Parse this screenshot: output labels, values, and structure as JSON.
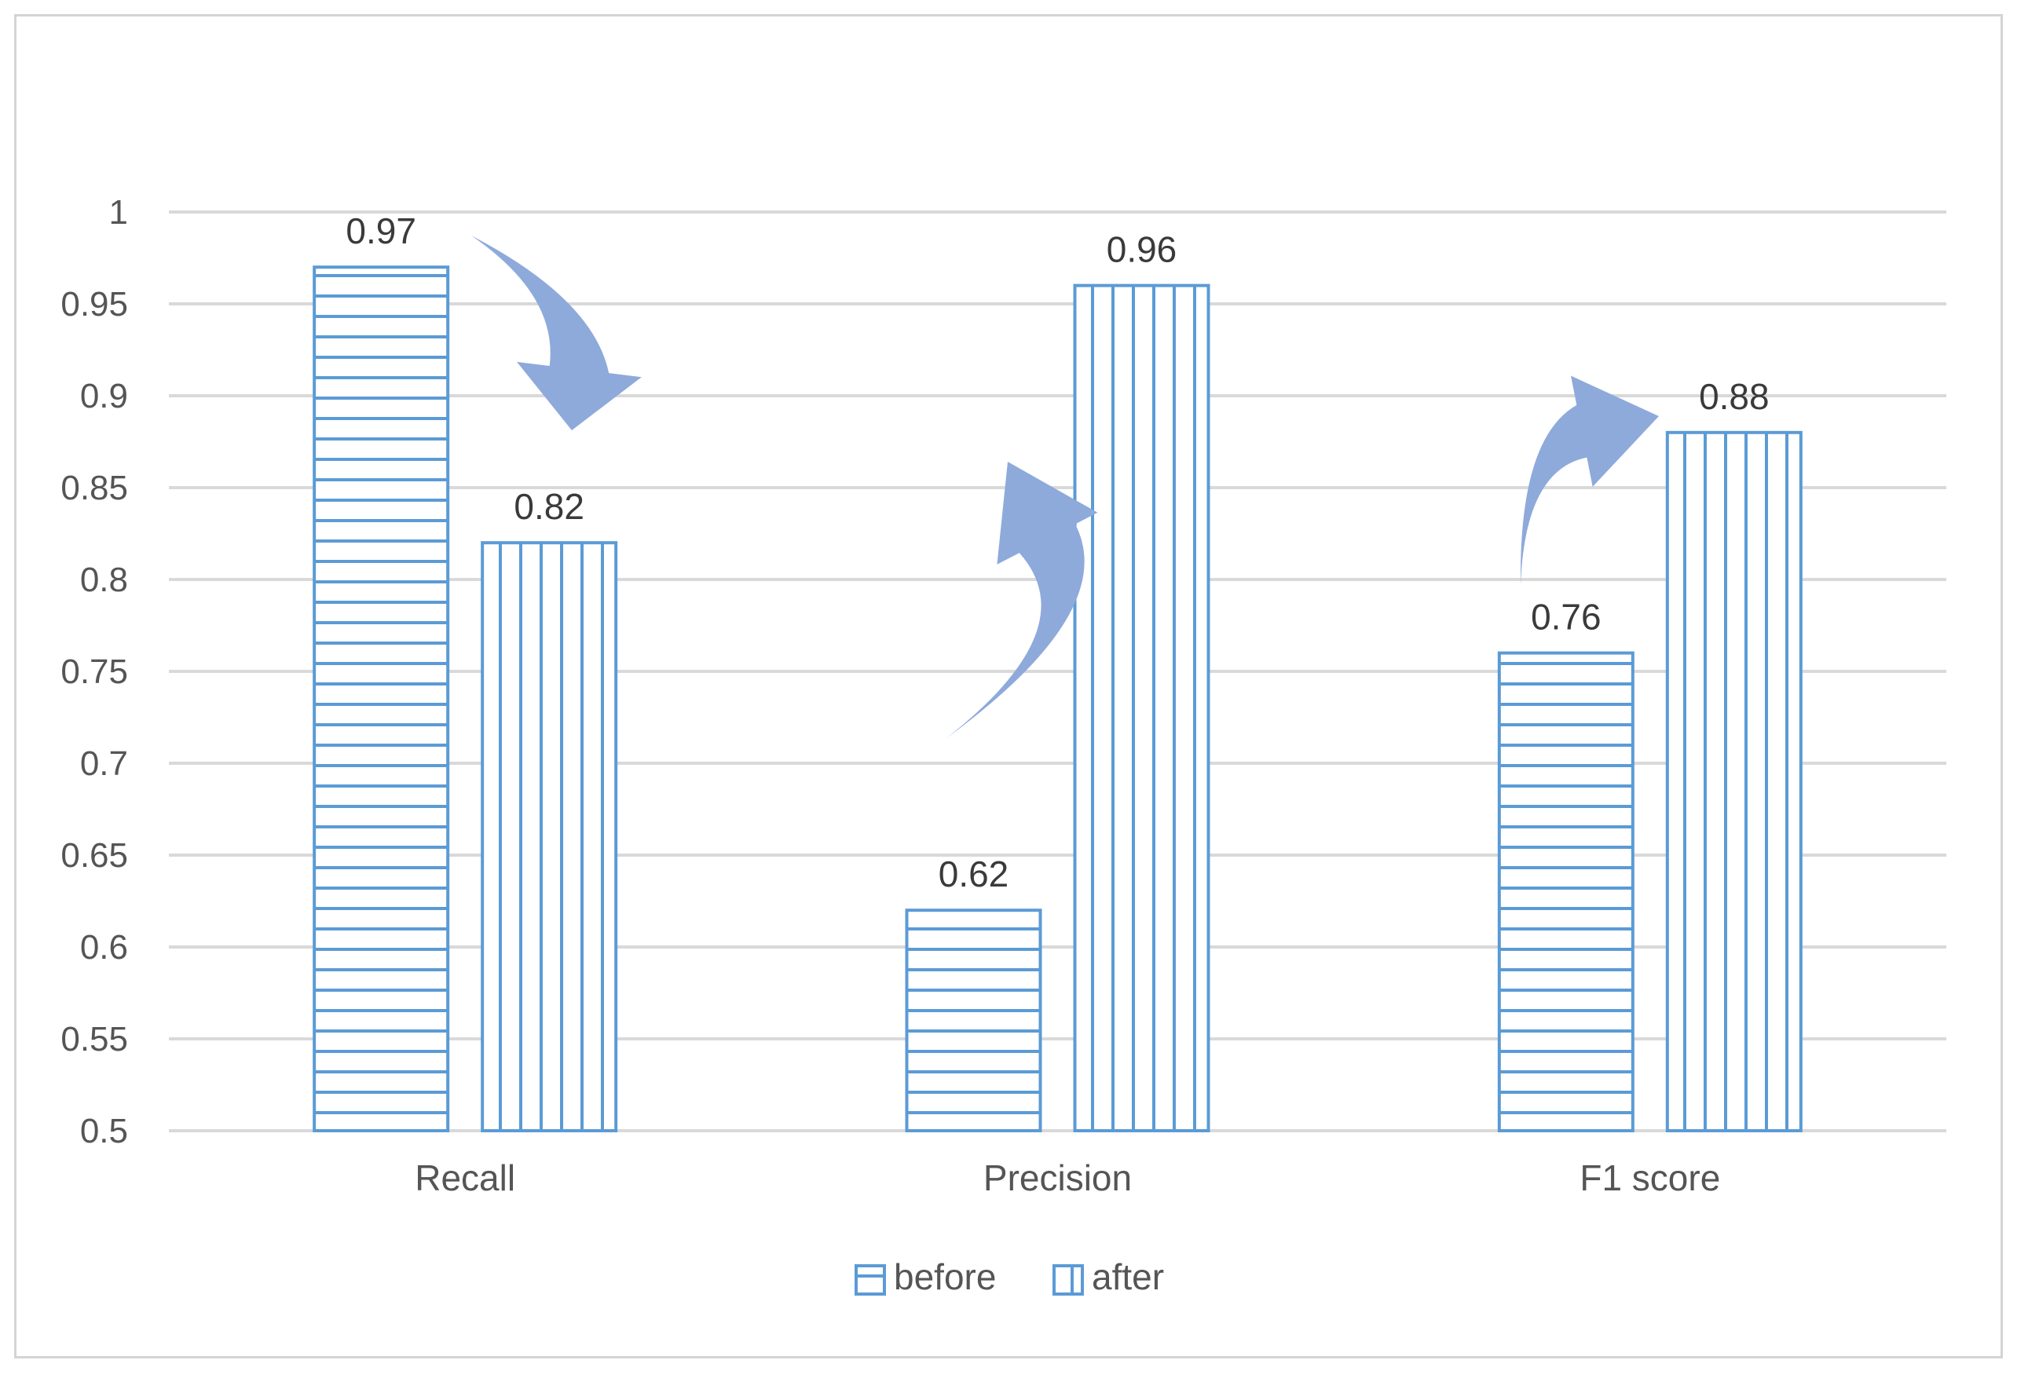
{
  "chart_data": {
    "type": "bar",
    "title": "",
    "xlabel": "",
    "ylabel": "",
    "categories": [
      "Recall",
      "Precision",
      "F1 score"
    ],
    "series": [
      {
        "name": "before",
        "values": [
          0.97,
          0.62,
          0.76
        ],
        "pattern": "horizontal-stripes"
      },
      {
        "name": "after",
        "values": [
          0.82,
          0.96,
          0.88
        ],
        "pattern": "vertical-stripes"
      }
    ],
    "ylim": [
      0.5,
      1
    ],
    "yticks": [
      "0.5",
      "0.55",
      "0.6",
      "0.65",
      "0.7",
      "0.75",
      "0.8",
      "0.85",
      "0.9",
      "0.95",
      "1"
    ],
    "grid": true,
    "legend": "bottom-center",
    "data_labels": true,
    "annotations": [
      {
        "type": "curved-arrow",
        "category": "Recall",
        "direction": "down",
        "from": "before",
        "to": "after"
      },
      {
        "type": "curved-arrow",
        "category": "Precision",
        "direction": "up",
        "from": "before",
        "to": "after"
      },
      {
        "type": "curved-arrow",
        "category": "F1 score",
        "direction": "up",
        "from": "before",
        "to": "after"
      }
    ],
    "colors": {
      "bar_stroke": "#5b9bd5",
      "arrow": "#8eaadb",
      "grid": "#d9d9d9",
      "text": "#555555"
    }
  }
}
